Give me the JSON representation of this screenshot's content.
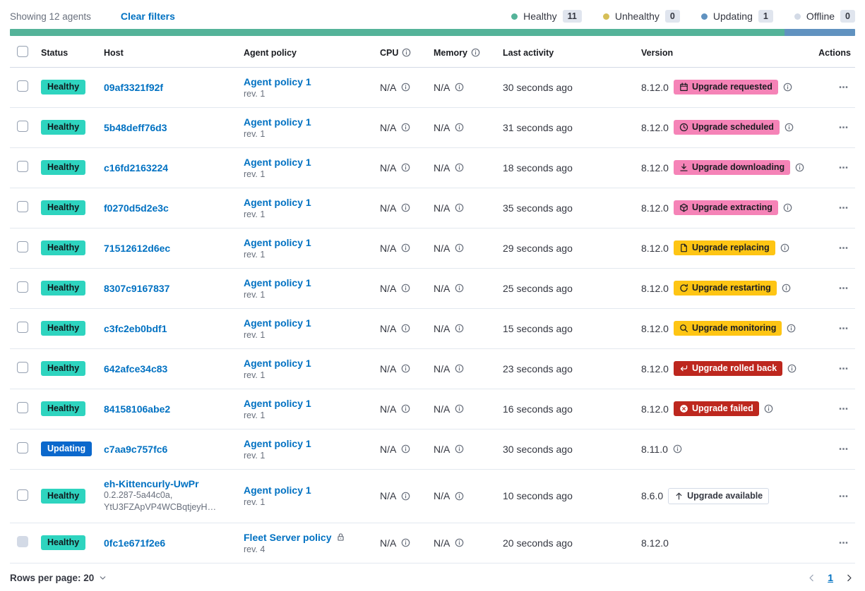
{
  "toolbar": {
    "showing": "Showing 12 agents",
    "clear_filters": "Clear filters",
    "legend": [
      {
        "label": "Healthy",
        "count": "11",
        "color": "#54B399"
      },
      {
        "label": "Unhealthy",
        "count": "0",
        "color": "#D6BF57"
      },
      {
        "label": "Updating",
        "count": "1",
        "color": "#6092C0"
      },
      {
        "label": "Offline",
        "count": "0",
        "color": "#D3DAE6"
      }
    ]
  },
  "progress_bar": {
    "segments": [
      {
        "color": "#54B399",
        "fraction": 11
      },
      {
        "color": "#6092C0",
        "fraction": 1
      }
    ]
  },
  "colors": {
    "healthy_badge": "#2ED4BF",
    "updating_badge": "#0B68CC",
    "upgrade_pink": "#F583B7",
    "upgrade_yellow": "#FEC514",
    "upgrade_red": "#BD271E",
    "link_blue": "#0071C2"
  },
  "table": {
    "columns": [
      {
        "label": "Status"
      },
      {
        "label": "Host"
      },
      {
        "label": "Agent policy"
      },
      {
        "label": "CPU",
        "info": true
      },
      {
        "label": "Memory",
        "info": true
      },
      {
        "label": "Last activity"
      },
      {
        "label": "Version"
      },
      {
        "label": "Actions",
        "align": "right"
      }
    ],
    "rows": [
      {
        "status": "Healthy",
        "host": "09af3321f92f",
        "policy": "Agent policy 1",
        "revision": "rev. 1",
        "cpu": "N/A",
        "memory": "N/A",
        "last_activity": "30 seconds ago",
        "version": "8.12.0",
        "upgrade": {
          "label": "Upgrade requested",
          "icon": "calendar",
          "variant": "pink"
        },
        "upgrade_info": true
      },
      {
        "status": "Healthy",
        "host": "5b48deff76d3",
        "policy": "Agent policy 1",
        "revision": "rev. 1",
        "cpu": "N/A",
        "memory": "N/A",
        "last_activity": "31 seconds ago",
        "version": "8.12.0",
        "upgrade": {
          "label": "Upgrade scheduled",
          "icon": "clock",
          "variant": "pink"
        },
        "upgrade_info": true
      },
      {
        "status": "Healthy",
        "host": "c16fd2163224",
        "policy": "Agent policy 1",
        "revision": "rev. 1",
        "cpu": "N/A",
        "memory": "N/A",
        "last_activity": "18 seconds ago",
        "version": "8.12.0",
        "upgrade": {
          "label": "Upgrade downloading",
          "icon": "download",
          "variant": "pink"
        },
        "upgrade_info": true
      },
      {
        "status": "Healthy",
        "host": "f0270d5d2e3c",
        "policy": "Agent policy 1",
        "revision": "rev. 1",
        "cpu": "N/A",
        "memory": "N/A",
        "last_activity": "35 seconds ago",
        "version": "8.12.0",
        "upgrade": {
          "label": "Upgrade extracting",
          "icon": "package",
          "variant": "pink"
        },
        "upgrade_info": true
      },
      {
        "status": "Healthy",
        "host": "71512612d6ec",
        "policy": "Agent policy 1",
        "revision": "rev. 1",
        "cpu": "N/A",
        "memory": "N/A",
        "last_activity": "29 seconds ago",
        "version": "8.12.0",
        "upgrade": {
          "label": "Upgrade replacing",
          "icon": "document",
          "variant": "yellow"
        },
        "upgrade_info": true
      },
      {
        "status": "Healthy",
        "host": "8307c9167837",
        "policy": "Agent policy 1",
        "revision": "rev. 1",
        "cpu": "N/A",
        "memory": "N/A",
        "last_activity": "25 seconds ago",
        "version": "8.12.0",
        "upgrade": {
          "label": "Upgrade restarting",
          "icon": "refresh",
          "variant": "yellow"
        },
        "upgrade_info": true
      },
      {
        "status": "Healthy",
        "host": "c3fc2eb0bdf1",
        "policy": "Agent policy 1",
        "revision": "rev. 1",
        "cpu": "N/A",
        "memory": "N/A",
        "last_activity": "15 seconds ago",
        "version": "8.12.0",
        "upgrade": {
          "label": "Upgrade monitoring",
          "icon": "inspect",
          "variant": "yellow"
        },
        "upgrade_info": true
      },
      {
        "status": "Healthy",
        "host": "642afce34c83",
        "policy": "Agent policy 1",
        "revision": "rev. 1",
        "cpu": "N/A",
        "memory": "N/A",
        "last_activity": "23 seconds ago",
        "version": "8.12.0",
        "upgrade": {
          "label": "Upgrade rolled back",
          "icon": "return",
          "variant": "red"
        },
        "upgrade_info": true
      },
      {
        "status": "Healthy",
        "host": "84158106abe2",
        "policy": "Agent policy 1",
        "revision": "rev. 1",
        "cpu": "N/A",
        "memory": "N/A",
        "last_activity": "16 seconds ago",
        "version": "8.12.0",
        "upgrade": {
          "label": "Upgrade failed",
          "icon": "error",
          "variant": "red"
        },
        "upgrade_info": true
      },
      {
        "status": "Updating",
        "host": "c7aa9c757fc6",
        "policy": "Agent policy 1",
        "revision": "rev. 1",
        "cpu": "N/A",
        "memory": "N/A",
        "last_activity": "30 seconds ago",
        "version": "8.11.0",
        "version_info": true
      },
      {
        "status": "Healthy",
        "host": "eh-Kittencurly-UwPr",
        "host_sub": [
          "0.2.287-5a44c0a,",
          "YtU3FZApVP4WCBqtjeyH…"
        ],
        "policy": "Agent policy 1",
        "revision": "rev. 1",
        "cpu": "N/A",
        "memory": "N/A",
        "last_activity": "10 seconds ago",
        "version": "8.6.0",
        "upgrade": {
          "label": "Upgrade available",
          "icon": "arrow-up",
          "variant": "hollow"
        },
        "tall": true
      },
      {
        "status": "Healthy",
        "host": "0fc1e671f2e6",
        "policy": "Fleet Server policy",
        "policy_locked": true,
        "revision": "rev. 4",
        "cpu": "N/A",
        "memory": "N/A",
        "last_activity": "20 seconds ago",
        "version": "8.12.0",
        "checkbox_disabled": true
      }
    ]
  },
  "footer": {
    "rows_per_page": "Rows per page: 20",
    "page": "1"
  }
}
